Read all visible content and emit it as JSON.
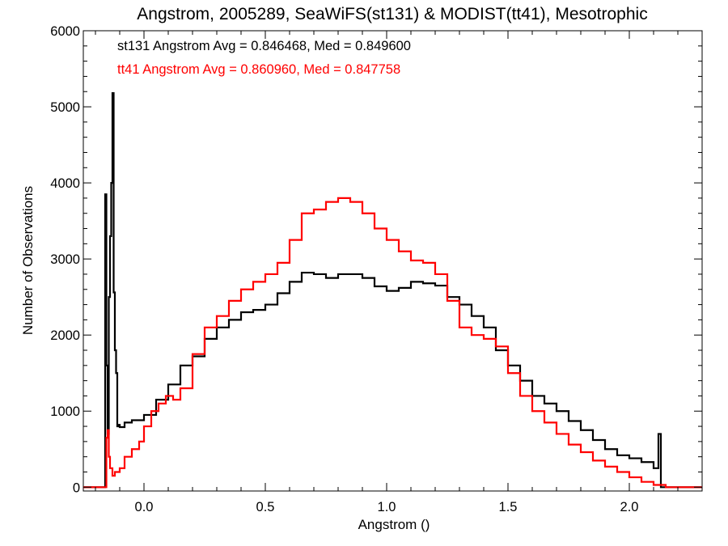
{
  "chart_data": {
    "type": "line",
    "title": "Angstrom, 2005289, SeaWiFS(st131) & MODIST(tt41), Mesotrophic",
    "xlabel": "Angstrom ()",
    "ylabel": "Number of Observations",
    "xlim": [
      -0.25,
      2.3
    ],
    "ylim": [
      -50,
      6000
    ],
    "xticks": [
      0.0,
      0.5,
      1.0,
      1.5,
      2.0
    ],
    "xtick_labels": [
      "0.0",
      "0.5",
      "1.0",
      "1.5",
      "2.0"
    ],
    "yticks": [
      0,
      1000,
      2000,
      3000,
      4000,
      5000,
      6000
    ],
    "ytick_labels": [
      "0",
      "1000",
      "2000",
      "3000",
      "4000",
      "5000",
      "6000"
    ],
    "grid": false,
    "annotations": [
      {
        "text": "st131 Angstrom Avg = 0.846468, Med = 0.849600",
        "color": "#000000"
      },
      {
        "text": "tt41 Angstrom Avg = 0.860960, Med = 0.847758",
        "color": "#ff0000"
      }
    ],
    "series": [
      {
        "color": "#000000",
        "style": "step",
        "x": [
          -0.25,
          -0.18,
          -0.16,
          -0.155,
          -0.15,
          -0.145,
          -0.14,
          -0.135,
          -0.13,
          -0.125,
          -0.12,
          -0.115,
          -0.11,
          -0.105,
          -0.1,
          -0.08,
          -0.05,
          0.0,
          0.05,
          0.1,
          0.15,
          0.2,
          0.25,
          0.3,
          0.35,
          0.4,
          0.45,
          0.5,
          0.55,
          0.6,
          0.65,
          0.7,
          0.75,
          0.8,
          0.85,
          0.9,
          0.95,
          1.0,
          1.05,
          1.1,
          1.15,
          1.2,
          1.25,
          1.3,
          1.35,
          1.4,
          1.45,
          1.5,
          1.55,
          1.6,
          1.65,
          1.7,
          1.75,
          1.8,
          1.85,
          1.9,
          1.95,
          2.0,
          2.05,
          2.1,
          2.12,
          2.13,
          2.14,
          2.15,
          2.2,
          2.3
        ],
        "y": [
          0,
          0,
          3850,
          1600,
          700,
          2500,
          3300,
          4000,
          5180,
          2560,
          1800,
          1500,
          800,
          820,
          790,
          850,
          880,
          950,
          1150,
          1350,
          1600,
          1720,
          1950,
          2100,
          2200,
          2300,
          2330,
          2400,
          2550,
          2700,
          2820,
          2800,
          2750,
          2800,
          2800,
          2750,
          2640,
          2580,
          2620,
          2700,
          2680,
          2650,
          2500,
          2400,
          2250,
          2100,
          1800,
          1600,
          1400,
          1200,
          1100,
          1000,
          870,
          750,
          620,
          500,
          420,
          380,
          330,
          250,
          700,
          0,
          0,
          0,
          0,
          0
        ]
      },
      {
        "color": "#ff0000",
        "style": "step",
        "x": [
          -0.25,
          -0.16,
          -0.155,
          -0.15,
          -0.145,
          -0.14,
          -0.13,
          -0.12,
          -0.1,
          -0.08,
          -0.05,
          -0.02,
          0.0,
          0.03,
          0.06,
          0.09,
          0.12,
          0.15,
          0.2,
          0.25,
          0.3,
          0.35,
          0.4,
          0.45,
          0.5,
          0.55,
          0.6,
          0.65,
          0.7,
          0.75,
          0.8,
          0.85,
          0.9,
          0.95,
          1.0,
          1.05,
          1.1,
          1.15,
          1.2,
          1.25,
          1.3,
          1.35,
          1.4,
          1.45,
          1.5,
          1.55,
          1.6,
          1.65,
          1.7,
          1.75,
          1.8,
          1.85,
          1.9,
          1.95,
          2.0,
          2.05,
          2.1,
          2.15,
          2.3
        ],
        "y": [
          0,
          0,
          650,
          750,
          400,
          250,
          150,
          200,
          250,
          400,
          500,
          600,
          800,
          1000,
          1100,
          1200,
          1150,
          1300,
          1750,
          2100,
          2250,
          2450,
          2600,
          2700,
          2800,
          2950,
          3250,
          3600,
          3650,
          3750,
          3800,
          3750,
          3600,
          3400,
          3250,
          3100,
          2980,
          2950,
          2800,
          2450,
          2100,
          2000,
          1950,
          1850,
          1500,
          1200,
          1000,
          850,
          700,
          560,
          460,
          350,
          270,
          200,
          130,
          70,
          30,
          0,
          0
        ]
      }
    ]
  }
}
